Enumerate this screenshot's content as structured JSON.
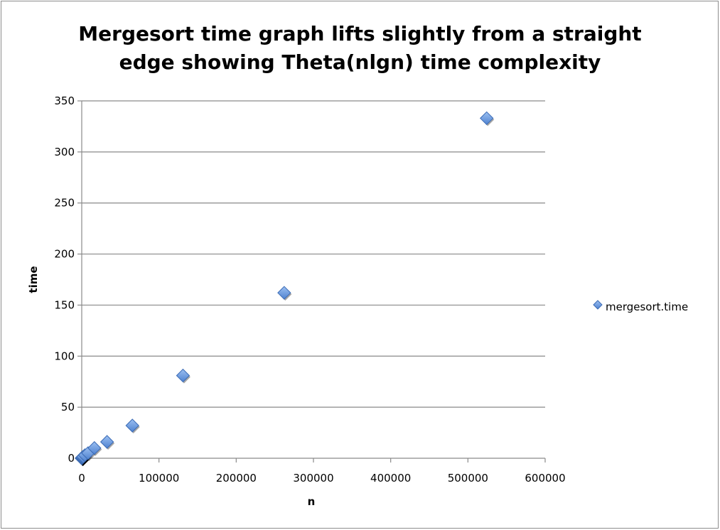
{
  "chart_data": {
    "type": "scatter",
    "title": "Mergesort time graph lifts slightly from a straight\nedge showing Theta(nlgn) time complexity",
    "xlabel": "n",
    "ylabel": "time",
    "xlim": [
      0,
      600000
    ],
    "ylim": [
      0,
      350
    ],
    "x_ticks": [
      0,
      100000,
      200000,
      300000,
      400000,
      500000,
      600000
    ],
    "y_ticks": [
      0,
      50,
      100,
      150,
      200,
      250,
      300,
      350
    ],
    "grid": "horizontal",
    "legend_position": "right",
    "series": [
      {
        "name": "mergesort.time",
        "color": "#5b8fd9",
        "marker": "diamond",
        "points": [
          {
            "x": 1,
            "y": 0
          },
          {
            "x": 2,
            "y": 0
          },
          {
            "x": 4,
            "y": 0
          },
          {
            "x": 8,
            "y": 0
          },
          {
            "x": 16,
            "y": 0
          },
          {
            "x": 32,
            "y": 0
          },
          {
            "x": 64,
            "y": 0
          },
          {
            "x": 128,
            "y": 0
          },
          {
            "x": 256,
            "y": 0
          },
          {
            "x": 512,
            "y": 0.5
          },
          {
            "x": 1024,
            "y": 1
          },
          {
            "x": 2048,
            "y": 1.5
          },
          {
            "x": 4096,
            "y": 3
          },
          {
            "x": 8192,
            "y": 5
          },
          {
            "x": 16384,
            "y": 10
          },
          {
            "x": 32768,
            "y": 16
          },
          {
            "x": 65536,
            "y": 32
          },
          {
            "x": 131072,
            "y": 81
          },
          {
            "x": 262144,
            "y": 162
          },
          {
            "x": 524288,
            "y": 333
          }
        ]
      }
    ]
  }
}
